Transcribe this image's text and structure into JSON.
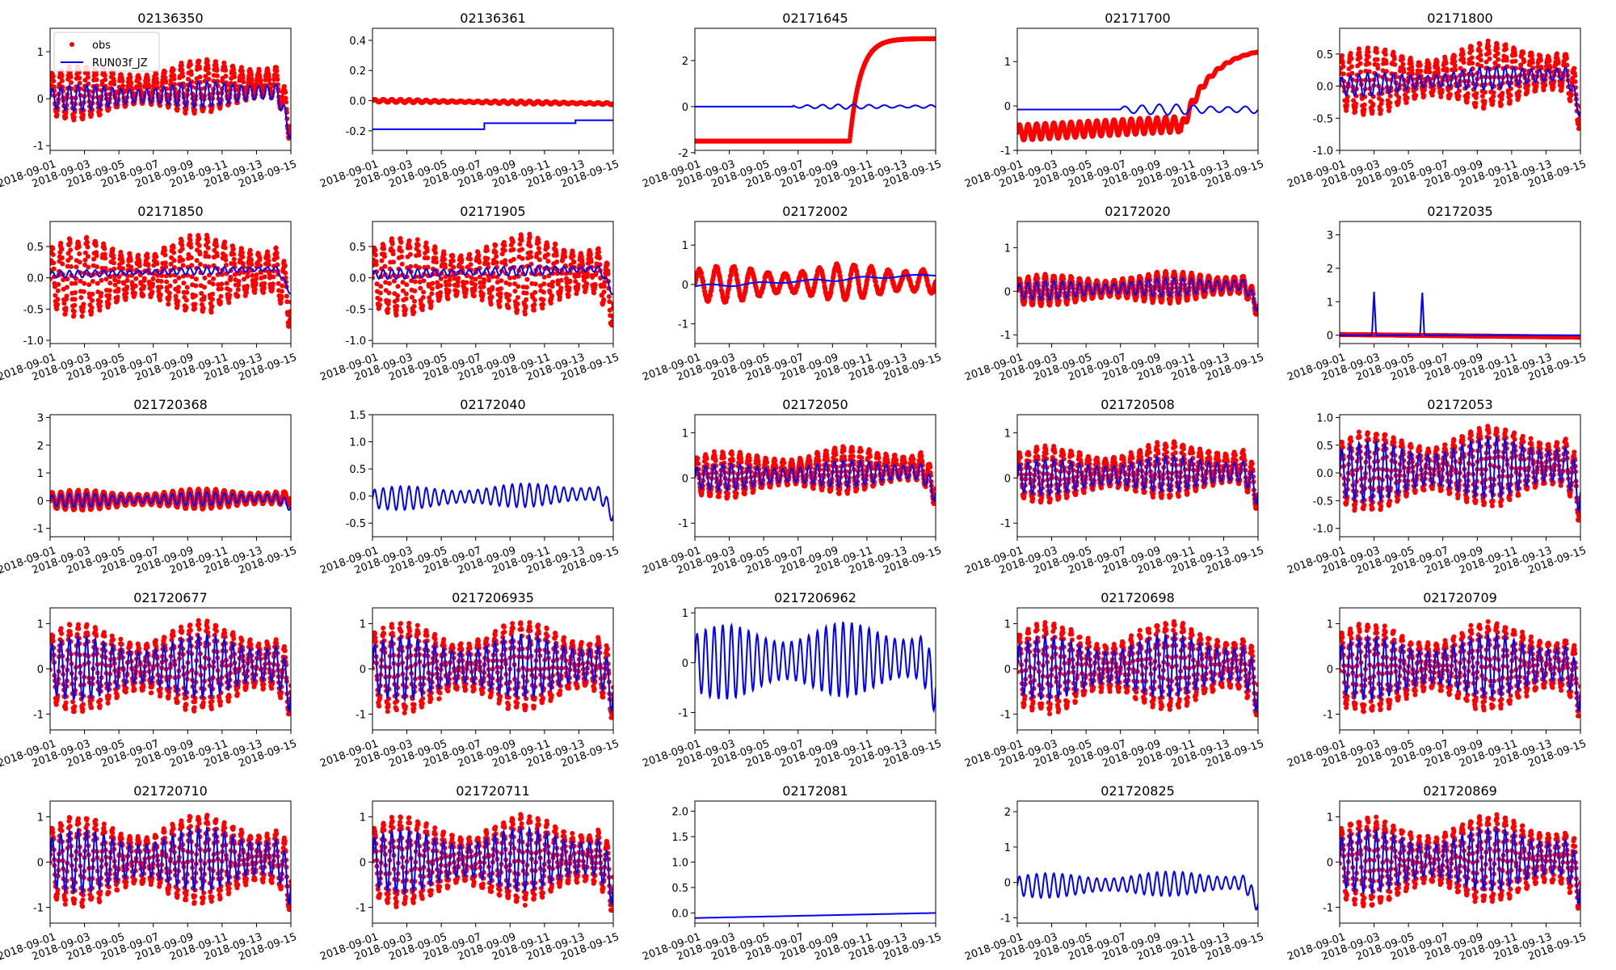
{
  "colors": {
    "obs": "#ff0000",
    "model": "#0000ff",
    "axes": "#000000",
    "background": "#ffffff"
  },
  "legend": {
    "placement": "top-left",
    "entries": [
      {
        "label": "obs",
        "marker": "dot",
        "color": "#ff0000"
      },
      {
        "label": "RUN03f_JZ",
        "marker": "line",
        "color": "#0000ff"
      }
    ]
  },
  "chart_data": [
    {
      "type": "line",
      "title": "02136350",
      "xrange": [
        "2018-09-01",
        "2018-09-15"
      ],
      "ylim": [
        -1.1,
        1.5
      ],
      "yticks": [
        "-1",
        "0",
        "1"
      ],
      "yvals": [
        -1,
        0,
        1
      ],
      "xtickfmt": "odd",
      "series": [
        {
          "name": "obs",
          "kind": "scatter",
          "amp": 0.55,
          "base": 0.1,
          "trend": 0.25,
          "period": 0.5,
          "dropend": 0.9
        },
        {
          "name": "RUN03f_JZ",
          "kind": "line",
          "amp": 0.28,
          "base": 0.0,
          "trend": 0.15,
          "period": 0.5,
          "dropend": 0.9
        }
      ]
    },
    {
      "type": "line",
      "title": "02136361",
      "xrange": [
        "2018-09-01",
        "2018-09-15"
      ],
      "ylim": [
        -0.33,
        0.48
      ],
      "yticks": [
        "-0.2",
        "0.0",
        "0.2",
        "0.4"
      ],
      "yvals": [
        -0.2,
        0,
        0.2,
        0.4
      ],
      "xtickfmt": "odd",
      "series": [
        {
          "name": "obs",
          "kind": "scatter",
          "amp": 0.01,
          "base": 0.0,
          "trend": -0.02,
          "period": 0.5
        },
        {
          "name": "RUN03f_JZ",
          "kind": "step",
          "steps": [
            [
              0,
              -0.19
            ],
            [
              6.5,
              -0.19
            ],
            [
              6.5,
              -0.15
            ],
            [
              11.8,
              -0.15
            ],
            [
              11.8,
              -0.13
            ],
            [
              14,
              -0.13
            ]
          ]
        }
      ]
    },
    {
      "type": "line",
      "title": "02171645",
      "xrange": [
        "2018-09-01",
        "2018-09-15"
      ],
      "ylim": [
        -1.9,
        3.4
      ],
      "yticks": [
        "-2",
        "0",
        "2"
      ],
      "yvals": [
        -2,
        0,
        2
      ],
      "xtickfmt": "all",
      "series": [
        {
          "name": "obs",
          "kind": "custom",
          "shape": "jump",
          "pre": -1.5,
          "jumpday": 9.0,
          "post": 2.95
        },
        {
          "name": "RUN03f_JZ",
          "kind": "line",
          "amp": 0.1,
          "base": 0.0,
          "trend": 0.0,
          "period": 0.9,
          "startday": 5.7
        }
      ]
    },
    {
      "type": "line",
      "title": "02171700",
      "xrange": [
        "2018-09-01",
        "2018-09-15"
      ],
      "ylim": [
        -1.0,
        1.75
      ],
      "yticks": [
        "-1",
        "0",
        "1"
      ],
      "yvals": [
        -1,
        0,
        1
      ],
      "xtickfmt": "odd",
      "series": [
        {
          "name": "obs",
          "kind": "custom",
          "shape": "rise",
          "pre": -0.6,
          "amp": 0.22,
          "jumpday": 9.5,
          "post": 1.35
        },
        {
          "name": "RUN03f_JZ",
          "kind": "line",
          "amp": 0.12,
          "base": -0.08,
          "trend": 0.0,
          "period": 1.0,
          "startday": 6.0
        }
      ]
    },
    {
      "type": "line",
      "title": "02171800",
      "xrange": [
        "2018-09-01",
        "2018-09-15"
      ],
      "ylim": [
        -1.0,
        0.9
      ],
      "yticks": [
        "-1.0",
        "-0.5",
        "0.0",
        "0.5"
      ],
      "yvals": [
        -1,
        -0.5,
        0,
        0.5
      ],
      "xtickfmt": "odd",
      "series": [
        {
          "name": "obs",
          "kind": "scatter",
          "amp": 0.5,
          "base": 0.05,
          "trend": 0.2,
          "period": 0.5,
          "dropend": 0.6
        },
        {
          "name": "RUN03f_JZ",
          "kind": "line",
          "amp": 0.18,
          "base": 0.0,
          "trend": 0.2,
          "period": 0.5,
          "dropend": 0.6
        }
      ]
    },
    {
      "type": "line",
      "title": "02171850",
      "xrange": [
        "2018-09-01",
        "2018-09-15"
      ],
      "ylim": [
        -1.05,
        0.9
      ],
      "yticks": [
        "-1.0",
        "-0.5",
        "0.0",
        "0.5"
      ],
      "yvals": [
        -1,
        -0.5,
        0,
        0.5
      ],
      "xtickfmt": "odd",
      "series": [
        {
          "name": "obs",
          "kind": "scatter",
          "amp": 0.6,
          "base": 0.0,
          "trend": 0.1,
          "period": 0.5,
          "dropend": 0.5
        },
        {
          "name": "RUN03f_JZ",
          "kind": "line",
          "amp": 0.06,
          "base": 0.05,
          "trend": 0.1,
          "period": 0.5,
          "dropend": 0.4
        }
      ]
    },
    {
      "type": "line",
      "title": "02171905",
      "xrange": [
        "2018-09-01",
        "2018-09-15"
      ],
      "ylim": [
        -1.05,
        0.9
      ],
      "yticks": [
        "-1.0",
        "-0.5",
        "0.0",
        "0.5"
      ],
      "yvals": [
        -1,
        -0.5,
        0,
        0.5
      ],
      "xtickfmt": "odd",
      "series": [
        {
          "name": "obs",
          "kind": "scatter",
          "amp": 0.6,
          "base": 0.0,
          "trend": 0.1,
          "period": 0.5,
          "dropend": 0.5
        },
        {
          "name": "RUN03f_JZ",
          "kind": "line",
          "amp": 0.08,
          "base": 0.05,
          "trend": 0.1,
          "period": 0.5,
          "dropend": 0.4
        }
      ]
    },
    {
      "type": "line",
      "title": "02172002",
      "xrange": [
        "2018-09-01",
        "2018-09-15"
      ],
      "ylim": [
        -1.5,
        1.6
      ],
      "yticks": [
        "-1",
        "0",
        "1"
      ],
      "yvals": [
        -1,
        0,
        1
      ],
      "xtickfmt": "all",
      "series": [
        {
          "name": "obs",
          "kind": "scatter",
          "amp": 0.45,
          "base": 0.0,
          "trend": 0.1,
          "period": 1.0
        },
        {
          "name": "RUN03f_JZ",
          "kind": "line",
          "amp": 0.04,
          "base": -0.05,
          "trend": 0.3,
          "period": 3.0
        }
      ]
    },
    {
      "type": "line",
      "title": "02172020",
      "xrange": [
        "2018-09-01",
        "2018-09-15"
      ],
      "ylim": [
        -1.2,
        1.6
      ],
      "yticks": [
        "-1",
        "0",
        "1"
      ],
      "yvals": [
        -1,
        0,
        1
      ],
      "xtickfmt": "all",
      "series": [
        {
          "name": "obs",
          "kind": "scatter",
          "amp": 0.35,
          "base": 0.0,
          "trend": 0.15,
          "period": 0.5,
          "dropend": 0.5
        },
        {
          "name": "RUN03f_JZ",
          "kind": "line",
          "amp": 0.22,
          "base": 0.0,
          "trend": 0.15,
          "period": 0.5,
          "dropend": 0.5
        }
      ]
    },
    {
      "type": "line",
      "title": "02172035",
      "xrange": [
        "2018-09-01",
        "2018-09-15"
      ],
      "ylim": [
        -0.25,
        3.4
      ],
      "yticks": [
        "0",
        "1",
        "2",
        "3"
      ],
      "yvals": [
        0,
        1,
        2,
        3
      ],
      "xtickfmt": "odd",
      "series": [
        {
          "name": "obs",
          "kind": "scatter",
          "amp": 0.0,
          "base": 0.02,
          "trend": -0.08,
          "period": 0.5
        },
        {
          "name": "RUN03f_JZ",
          "kind": "spikes",
          "base": 0.0,
          "spikes": [
            [
              2.0,
              1.3
            ],
            [
              4.8,
              1.35
            ]
          ]
        }
      ]
    },
    {
      "type": "line",
      "title": "021720368",
      "xrange": [
        "2018-09-01",
        "2018-09-15"
      ],
      "ylim": [
        -1.3,
        3.1
      ],
      "yticks": [
        "-1",
        "0",
        "1",
        "2",
        "3"
      ],
      "yvals": [
        -1,
        0,
        1,
        2,
        3
      ],
      "xtickfmt": "odd",
      "series": [
        {
          "name": "obs",
          "kind": "scatter",
          "amp": 0.35,
          "base": 0.0,
          "trend": 0.1,
          "period": 0.5
        },
        {
          "name": "RUN03f_JZ",
          "kind": "line",
          "amp": 0.25,
          "base": 0.0,
          "trend": 0.1,
          "period": 0.5,
          "dropend": 0.3
        }
      ]
    },
    {
      "type": "line",
      "title": "02172040",
      "xrange": [
        "2018-09-01",
        "2018-09-15"
      ],
      "ylim": [
        -0.75,
        1.5
      ],
      "yticks": [
        "-0.5",
        "0.0",
        "0.5",
        "1.0",
        "1.5"
      ],
      "yvals": [
        -0.5,
        0,
        0.5,
        1,
        1.5
      ],
      "xtickfmt": "odd",
      "series": [
        {
          "name": "RUN03f_JZ",
          "kind": "line",
          "amp": 0.22,
          "base": -0.05,
          "trend": 0.1,
          "period": 0.5,
          "dropend": 0.4
        }
      ]
    },
    {
      "type": "line",
      "title": "02172050",
      "xrange": [
        "2018-09-01",
        "2018-09-15"
      ],
      "ylim": [
        -1.3,
        1.4
      ],
      "yticks": [
        "-1",
        "0",
        "1"
      ],
      "yvals": [
        -1,
        0,
        1
      ],
      "xtickfmt": "all",
      "series": [
        {
          "name": "obs",
          "kind": "scatter",
          "amp": 0.5,
          "base": 0.05,
          "trend": 0.2,
          "period": 0.5,
          "dropend": 0.5
        },
        {
          "name": "RUN03f_JZ",
          "kind": "line",
          "amp": 0.3,
          "base": 0.0,
          "trend": 0.15,
          "period": 0.5,
          "dropend": 0.5
        }
      ]
    },
    {
      "type": "line",
      "title": "021720508",
      "xrange": [
        "2018-09-01",
        "2018-09-15"
      ],
      "ylim": [
        -1.3,
        1.4
      ],
      "yticks": [
        "-1",
        "0",
        "1"
      ],
      "yvals": [
        -1,
        0,
        1
      ],
      "xtickfmt": "all",
      "series": [
        {
          "name": "obs",
          "kind": "scatter",
          "amp": 0.6,
          "base": 0.05,
          "trend": 0.2,
          "period": 0.5,
          "dropend": 0.6
        },
        {
          "name": "RUN03f_JZ",
          "kind": "line",
          "amp": 0.4,
          "base": 0.0,
          "trend": 0.15,
          "period": 0.5,
          "dropend": 0.5
        }
      ]
    },
    {
      "type": "line",
      "title": "02172053",
      "xrange": [
        "2018-09-01",
        "2018-09-15"
      ],
      "ylim": [
        -1.15,
        1.05
      ],
      "yticks": [
        "-1.0",
        "-0.5",
        "0.0",
        "0.5",
        "1.0"
      ],
      "yvals": [
        -1,
        -0.5,
        0,
        0.5,
        1
      ],
      "xtickfmt": "all",
      "series": [
        {
          "name": "obs",
          "kind": "scatter",
          "amp": 0.7,
          "base": 0.0,
          "trend": 0.2,
          "period": 0.5,
          "dropend": 0.6
        },
        {
          "name": "RUN03f_JZ",
          "kind": "line",
          "amp": 0.55,
          "base": 0.0,
          "trend": 0.15,
          "period": 0.5,
          "dropend": 0.5
        }
      ]
    },
    {
      "type": "line",
      "title": "021720677",
      "xrange": [
        "2018-09-01",
        "2018-09-15"
      ],
      "ylim": [
        -1.35,
        1.35
      ],
      "yticks": [
        "-1",
        "0",
        "1"
      ],
      "yvals": [
        -1,
        0,
        1
      ],
      "xtickfmt": "odd",
      "series": [
        {
          "name": "obs",
          "kind": "scatter",
          "amp": 0.95,
          "base": 0.0,
          "trend": 0.1,
          "period": 0.5,
          "dropend": 0.5
        },
        {
          "name": "RUN03f_JZ",
          "kind": "line",
          "amp": 0.7,
          "base": 0.0,
          "trend": 0.1,
          "period": 0.5,
          "dropend": 0.6
        }
      ]
    },
    {
      "type": "line",
      "title": "0217206935",
      "xrange": [
        "2018-09-01",
        "2018-09-15"
      ],
      "ylim": [
        -1.35,
        1.35
      ],
      "yticks": [
        "-1",
        "0",
        "1"
      ],
      "yvals": [
        -1,
        0,
        1
      ],
      "xtickfmt": "odd",
      "series": [
        {
          "name": "obs",
          "kind": "scatter",
          "amp": 0.95,
          "base": 0.0,
          "trend": 0.1,
          "period": 0.5,
          "dropend": 0.5
        },
        {
          "name": "RUN03f_JZ",
          "kind": "line",
          "amp": 0.7,
          "base": 0.0,
          "trend": 0.1,
          "period": 0.5,
          "dropend": 0.6
        }
      ]
    },
    {
      "type": "line",
      "title": "0217206962",
      "xrange": [
        "2018-09-01",
        "2018-09-15"
      ],
      "ylim": [
        -1.35,
        1.1
      ],
      "yticks": [
        "-1",
        "0",
        "1"
      ],
      "yvals": [
        -1,
        0,
        1
      ],
      "xtickfmt": "all",
      "series": [
        {
          "name": "RUN03f_JZ",
          "kind": "line",
          "amp": 0.75,
          "base": 0.0,
          "trend": 0.1,
          "period": 0.5,
          "dropend": 0.6
        }
      ]
    },
    {
      "type": "line",
      "title": "021720698",
      "xrange": [
        "2018-09-01",
        "2018-09-15"
      ],
      "ylim": [
        -1.35,
        1.35
      ],
      "yticks": [
        "-1",
        "0",
        "1"
      ],
      "yvals": [
        -1,
        0,
        1
      ],
      "xtickfmt": "all",
      "series": [
        {
          "name": "obs",
          "kind": "scatter",
          "amp": 0.95,
          "base": 0.0,
          "trend": 0.1,
          "period": 0.5,
          "dropend": 0.5
        },
        {
          "name": "RUN03f_JZ",
          "kind": "line",
          "amp": 0.7,
          "base": 0.0,
          "trend": 0.1,
          "period": 0.5,
          "dropend": 0.6
        }
      ]
    },
    {
      "type": "line",
      "title": "021720709",
      "xrange": [
        "2018-09-01",
        "2018-09-15"
      ],
      "ylim": [
        -1.35,
        1.35
      ],
      "yticks": [
        "-1",
        "0",
        "1"
      ],
      "yvals": [
        -1,
        0,
        1
      ],
      "xtickfmt": "all",
      "series": [
        {
          "name": "obs",
          "kind": "scatter",
          "amp": 0.95,
          "base": 0.0,
          "trend": 0.1,
          "period": 0.5,
          "dropend": 0.5
        },
        {
          "name": "RUN03f_JZ",
          "kind": "line",
          "amp": 0.7,
          "base": 0.0,
          "trend": 0.1,
          "period": 0.5,
          "dropend": 0.6
        }
      ]
    },
    {
      "type": "line",
      "title": "021720710",
      "xrange": [
        "2018-09-01",
        "2018-09-15"
      ],
      "ylim": [
        -1.35,
        1.35
      ],
      "yticks": [
        "-1",
        "0",
        "1"
      ],
      "yvals": [
        -1,
        0,
        1
      ],
      "xtickfmt": "odd",
      "series": [
        {
          "name": "obs",
          "kind": "scatter",
          "amp": 0.95,
          "base": 0.0,
          "trend": 0.1,
          "period": 0.5,
          "dropend": 0.5
        },
        {
          "name": "RUN03f_JZ",
          "kind": "line",
          "amp": 0.7,
          "base": 0.0,
          "trend": 0.1,
          "period": 0.5,
          "dropend": 0.6
        }
      ]
    },
    {
      "type": "line",
      "title": "021720711",
      "xrange": [
        "2018-09-01",
        "2018-09-15"
      ],
      "ylim": [
        -1.35,
        1.35
      ],
      "yticks": [
        "-1",
        "0",
        "1"
      ],
      "yvals": [
        -1,
        0,
        1
      ],
      "xtickfmt": "all",
      "series": [
        {
          "name": "obs",
          "kind": "scatter",
          "amp": 0.95,
          "base": 0.0,
          "trend": 0.1,
          "period": 0.5,
          "dropend": 0.5
        },
        {
          "name": "RUN03f_JZ",
          "kind": "line",
          "amp": 0.7,
          "base": 0.0,
          "trend": 0.1,
          "period": 0.5,
          "dropend": 0.6
        }
      ]
    },
    {
      "type": "line",
      "title": "02172081",
      "xrange": [
        "2018-09-01",
        "2018-09-15"
      ],
      "ylim": [
        -0.2,
        2.2
      ],
      "yticks": [
        "0.0",
        "0.5",
        "1.0",
        "1.5",
        "2.0"
      ],
      "yvals": [
        0,
        0.5,
        1,
        1.5,
        2
      ],
      "xtickfmt": "all",
      "series": [
        {
          "name": "RUN03f_JZ",
          "kind": "line",
          "amp": 0.0,
          "base": -0.1,
          "trend": 0.1,
          "period": 1.0
        }
      ]
    },
    {
      "type": "line",
      "title": "021720825",
      "xrange": [
        "2018-09-01",
        "2018-09-15"
      ],
      "ylim": [
        -1.15,
        2.3
      ],
      "yticks": [
        "-1",
        "0",
        "1",
        "2"
      ],
      "yvals": [
        -1,
        0,
        1,
        2
      ],
      "xtickfmt": "all",
      "series": [
        {
          "name": "RUN03f_JZ",
          "kind": "line",
          "amp": 0.35,
          "base": -0.1,
          "trend": 0.1,
          "period": 0.5,
          "dropend": 0.6
        }
      ]
    },
    {
      "type": "line",
      "title": "021720869",
      "xrange": [
        "2018-09-01",
        "2018-09-15"
      ],
      "ylim": [
        -1.35,
        1.35
      ],
      "yticks": [
        "-1",
        "0",
        "1"
      ],
      "yvals": [
        -1,
        0,
        1
      ],
      "xtickfmt": "all",
      "series": [
        {
          "name": "obs",
          "kind": "scatter",
          "amp": 0.95,
          "base": 0.0,
          "trend": 0.1,
          "period": 0.5,
          "dropend": 0.5
        },
        {
          "name": "RUN03f_JZ",
          "kind": "line",
          "amp": 0.7,
          "base": 0.0,
          "trend": 0.1,
          "period": 0.5,
          "dropend": 0.6
        }
      ]
    }
  ],
  "xtick_labels_all": [
    "2018-09-01",
    "2018-09-03",
    "2018-09-05",
    "2018-09-07",
    "2018-09-09",
    "2018-09-11",
    "2018-09-13",
    "2018-09-15"
  ],
  "xtick_labels_odd": [
    "2018-09-01",
    "2018-09-03",
    "2018-09-05",
    "2018-09-07",
    "2018-09-09",
    "2018-09-11",
    "2018-09-13",
    "2018-09-15"
  ]
}
